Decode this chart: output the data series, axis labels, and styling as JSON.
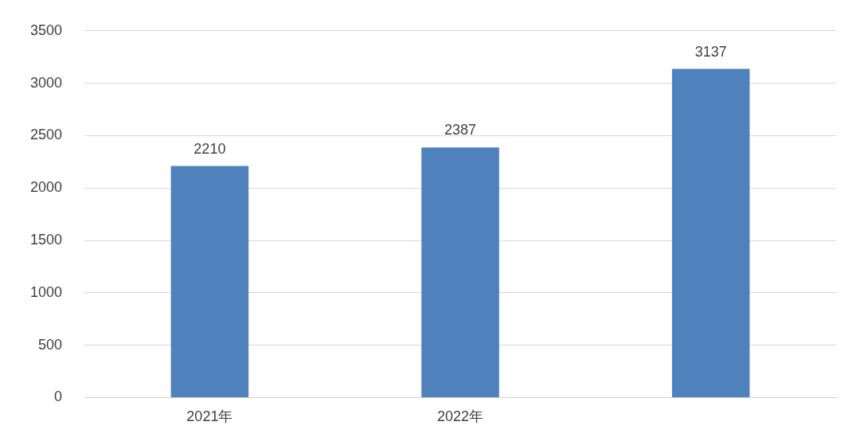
{
  "chart_data": {
    "type": "bar",
    "categories": [
      "2021年",
      "2022年",
      null
    ],
    "values": [
      2210,
      2387,
      3137
    ],
    "color": "#4f81bd",
    "ylim": [
      0,
      3500
    ],
    "yticks": [
      0,
      500,
      1000,
      1500,
      2000,
      2500,
      3000,
      3500
    ],
    "grid": "y",
    "data_labels": true
  }
}
